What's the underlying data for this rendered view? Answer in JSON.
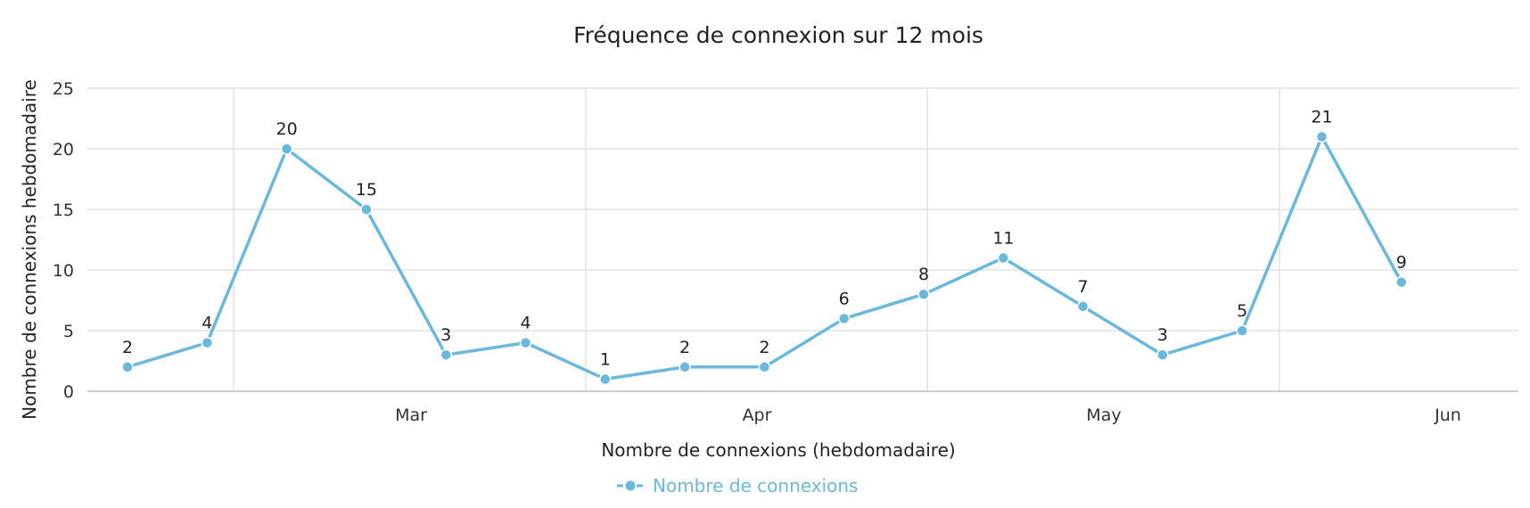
{
  "chart_data": {
    "type": "line",
    "title": "Fréquence de connexion sur 12 mois",
    "xlabel": "Nombre de connexions (hebdomadaire)",
    "ylabel": "Nombre de connexions hebdomadaire",
    "ylim": [
      0,
      25
    ],
    "y_ticks": [
      "0",
      "5",
      "10",
      "15",
      "20",
      "25"
    ],
    "x_tick_labels": [
      "Mar",
      "Apr",
      "May",
      "Jun"
    ],
    "grid": true,
    "legend": "bottom-center",
    "series": [
      {
        "name": "Nombre de connexions",
        "color": "#6bb8dd",
        "values": [
          2,
          4,
          20,
          15,
          3,
          4,
          1,
          2,
          2,
          6,
          8,
          11,
          7,
          3,
          5,
          21,
          9
        ]
      }
    ]
  }
}
